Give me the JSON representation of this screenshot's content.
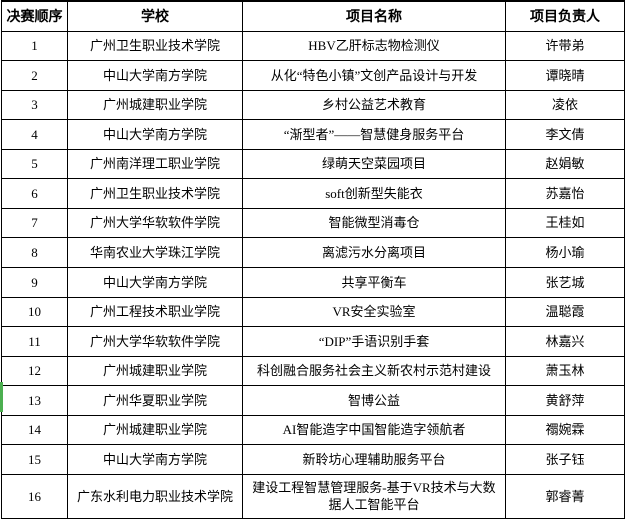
{
  "table": {
    "columns": [
      {
        "key": "order",
        "label": "决赛顺序"
      },
      {
        "key": "school",
        "label": "学校"
      },
      {
        "key": "project",
        "label": "项目名称"
      },
      {
        "key": "leader",
        "label": "项目负责人"
      }
    ],
    "rows": [
      {
        "order": "1",
        "school": "广州卫生职业技术学院",
        "project": "HBV乙肝标志物检测仪",
        "leader": "许带弟"
      },
      {
        "order": "2",
        "school": "中山大学南方学院",
        "project": "从化“特色小镇”文创产品设计与开发",
        "leader": "谭晓晴"
      },
      {
        "order": "3",
        "school": "广州城建职业学院",
        "project": "乡村公益艺术教育",
        "leader": "凌依"
      },
      {
        "order": "4",
        "school": "中山大学南方学院",
        "project": "“渐型者”——智慧健身服务平台",
        "leader": "李文倩"
      },
      {
        "order": "5",
        "school": "广州南洋理工职业学院",
        "project": "绿萌天空菜园项目",
        "leader": "赵娟敏"
      },
      {
        "order": "6",
        "school": "广州卫生职业技术学院",
        "project": "soft创新型失能衣",
        "leader": "苏嘉怡"
      },
      {
        "order": "7",
        "school": "广州大学华软软件学院",
        "project": "智能微型消毒仓",
        "leader": "王桂如"
      },
      {
        "order": "8",
        "school": "华南农业大学珠江学院",
        "project": "离滤污水分离项目",
        "leader": "杨小瑜"
      },
      {
        "order": "9",
        "school": "中山大学南方学院",
        "project": "共享平衡车",
        "leader": "张艺城"
      },
      {
        "order": "10",
        "school": "广州工程技术职业学院",
        "project": "VR安全实验室",
        "leader": "温聪霞"
      },
      {
        "order": "11",
        "school": "广州大学华软软件学院",
        "project": "“DIP”手语识别手套",
        "leader": "林嘉兴"
      },
      {
        "order": "12",
        "school": "广州城建职业学院",
        "project": "科创融合服务社会主义新农村示范村建设",
        "leader": "萧玉林"
      },
      {
        "order": "13",
        "school": "广州华夏职业学院",
        "project": "智博公益",
        "leader": "黄舒萍",
        "selected": true
      },
      {
        "order": "14",
        "school": "广州城建职业学院",
        "project": "AI智能造字中国智能造字领航者",
        "leader": "禤婉霖"
      },
      {
        "order": "15",
        "school": "中山大学南方学院",
        "project": "新聆坊心理辅助服务平台",
        "leader": "张子钰"
      },
      {
        "order": "16",
        "school": "广东水利电力职业技术学院",
        "project": "建设工程智慧管理服务-基于VR技术与大数据人工智能平台",
        "leader": "郭睿菁"
      }
    ]
  },
  "colors": {
    "border": "#000000",
    "text": "#000000",
    "background": "#ffffff",
    "selection_green": "#4caf50"
  }
}
